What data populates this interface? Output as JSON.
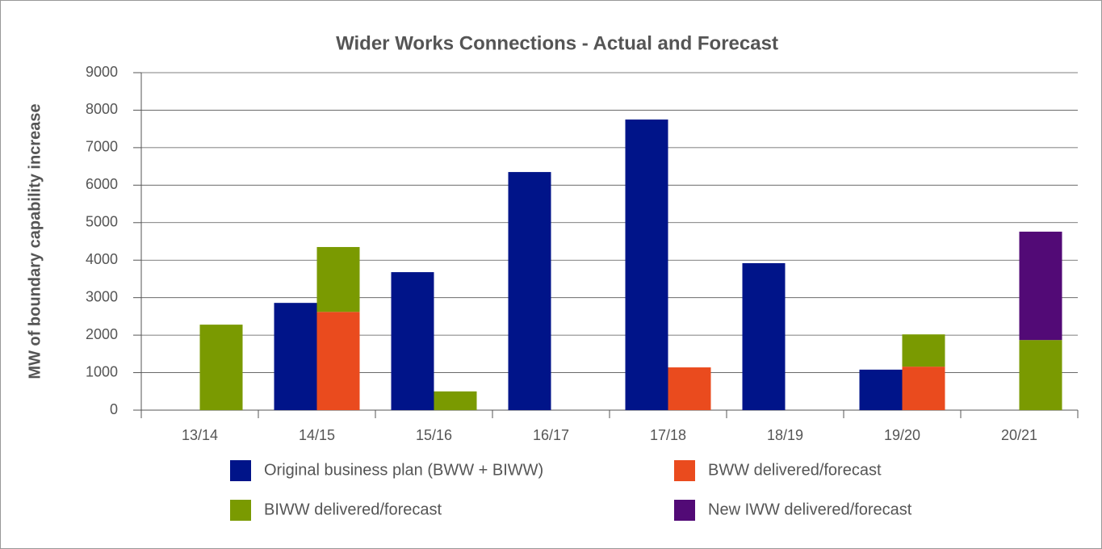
{
  "chart_data": {
    "type": "bar",
    "title": "Wider Works Connections - Actual and Forecast",
    "y_label": "MW of boundary capability increase",
    "categories": [
      "13/14",
      "14/15",
      "15/16",
      "16/17",
      "17/18",
      "18/19",
      "19/20",
      "20/21"
    ],
    "series": [
      {
        "name": "Original business plan (BWW + BIWW)",
        "color": "#001489",
        "values": [
          null,
          2860,
          3680,
          6350,
          7750,
          3920,
          1080,
          null
        ]
      },
      {
        "name": "BWW delivered/forecast",
        "color": "#ea4b1e",
        "values": [
          null,
          2620,
          null,
          null,
          1140,
          null,
          1160,
          null
        ]
      },
      {
        "name": "BIWW delivered/forecast",
        "color": "#7a9a01",
        "values": [
          2280,
          1730,
          500,
          null,
          null,
          null,
          860,
          1870
        ]
      },
      {
        "name": "New IWW delivered/forecast",
        "color": "#520a76",
        "values": [
          null,
          null,
          null,
          null,
          null,
          null,
          null,
          2890
        ]
      }
    ],
    "ylim": [
      0,
      9000
    ],
    "yticks": [
      0,
      1000,
      2000,
      3000,
      4000,
      5000,
      6000,
      7000,
      8000,
      9000
    ],
    "grid": true
  }
}
